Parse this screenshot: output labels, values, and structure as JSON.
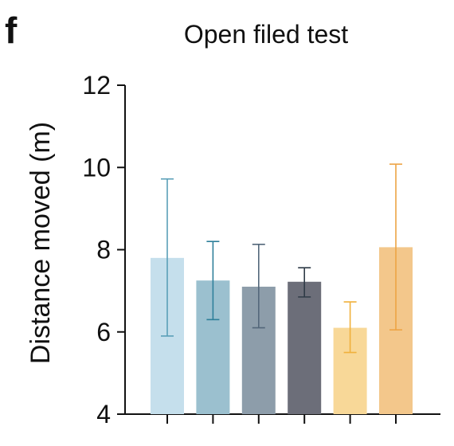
{
  "panel_label": "f",
  "chart_data": {
    "type": "bar",
    "title": "Open filed test",
    "xlabel": "",
    "ylabel": "Distance moved (m)",
    "ylim": [
      4,
      12
    ],
    "yticks": [
      "4",
      "6",
      "8",
      "10",
      "12"
    ],
    "grid": false,
    "series": [
      {
        "values": [
          7.8,
          7.25,
          7.1,
          7.22,
          6.1,
          8.06
        ],
        "error_low": [
          5.9,
          6.3,
          6.1,
          6.85,
          5.5,
          6.05
        ],
        "error_high": [
          9.72,
          8.2,
          8.13,
          7.56,
          6.73,
          10.08
        ],
        "bar_colors": [
          "#c5dfec",
          "#9bc0cf",
          "#8d9daa",
          "#6c6e79",
          "#f8d898",
          "#f3c78b"
        ],
        "error_colors": [
          "#5a9fb8",
          "#2e7f9a",
          "#53677a",
          "#2f3b47",
          "#f0b13c",
          "#eda445"
        ]
      }
    ]
  }
}
